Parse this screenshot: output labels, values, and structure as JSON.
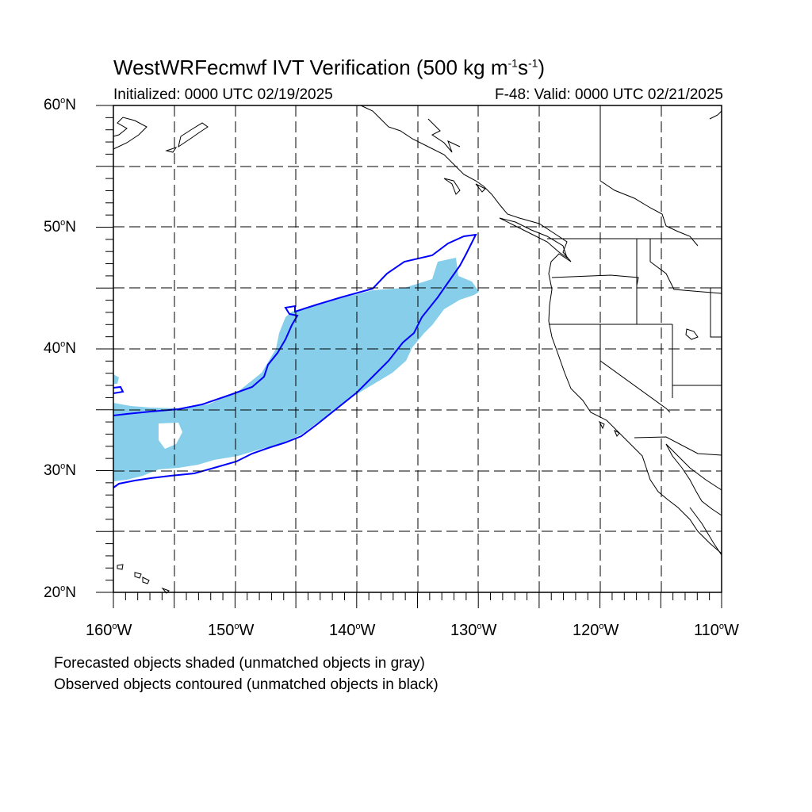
{
  "title": {
    "main": "WestWRFecmwf IVT Verification (500 kg m",
    "exp1": "-1",
    "mid": "s",
    "exp2": "-1",
    "end": ")"
  },
  "subtitle": {
    "initialized": "Initialized: 0000 UTC 02/19/2025",
    "valid": "F-48: Valid: 0000 UTC 02/21/2025"
  },
  "axes": {
    "lat_labels": [
      {
        "deg": "60",
        "hemi": "N"
      },
      {
        "deg": "50",
        "hemi": "N"
      },
      {
        "deg": "40",
        "hemi": "N"
      },
      {
        "deg": "30",
        "hemi": "N"
      },
      {
        "deg": "20",
        "hemi": "N"
      }
    ],
    "lon_labels": [
      {
        "deg": "160",
        "hemi": "W"
      },
      {
        "deg": "150",
        "hemi": "W"
      },
      {
        "deg": "140",
        "hemi": "W"
      },
      {
        "deg": "130",
        "hemi": "W"
      },
      {
        "deg": "120",
        "hemi": "W"
      },
      {
        "deg": "110",
        "hemi": "W"
      }
    ],
    "lon_range": [
      -160,
      -110
    ],
    "lat_range": [
      20,
      60
    ],
    "grid": "dashed every 5 degrees"
  },
  "legend": {
    "forecast": "Forecasted objects shaded (unmatched objects in gray)",
    "observed": "Observed objects contoured (unmatched objects in black)"
  },
  "colors": {
    "forecast_fill": "#87ceeb",
    "observed_contour": "#0000ff",
    "coastline": "#000000",
    "grid": "#000000"
  }
}
